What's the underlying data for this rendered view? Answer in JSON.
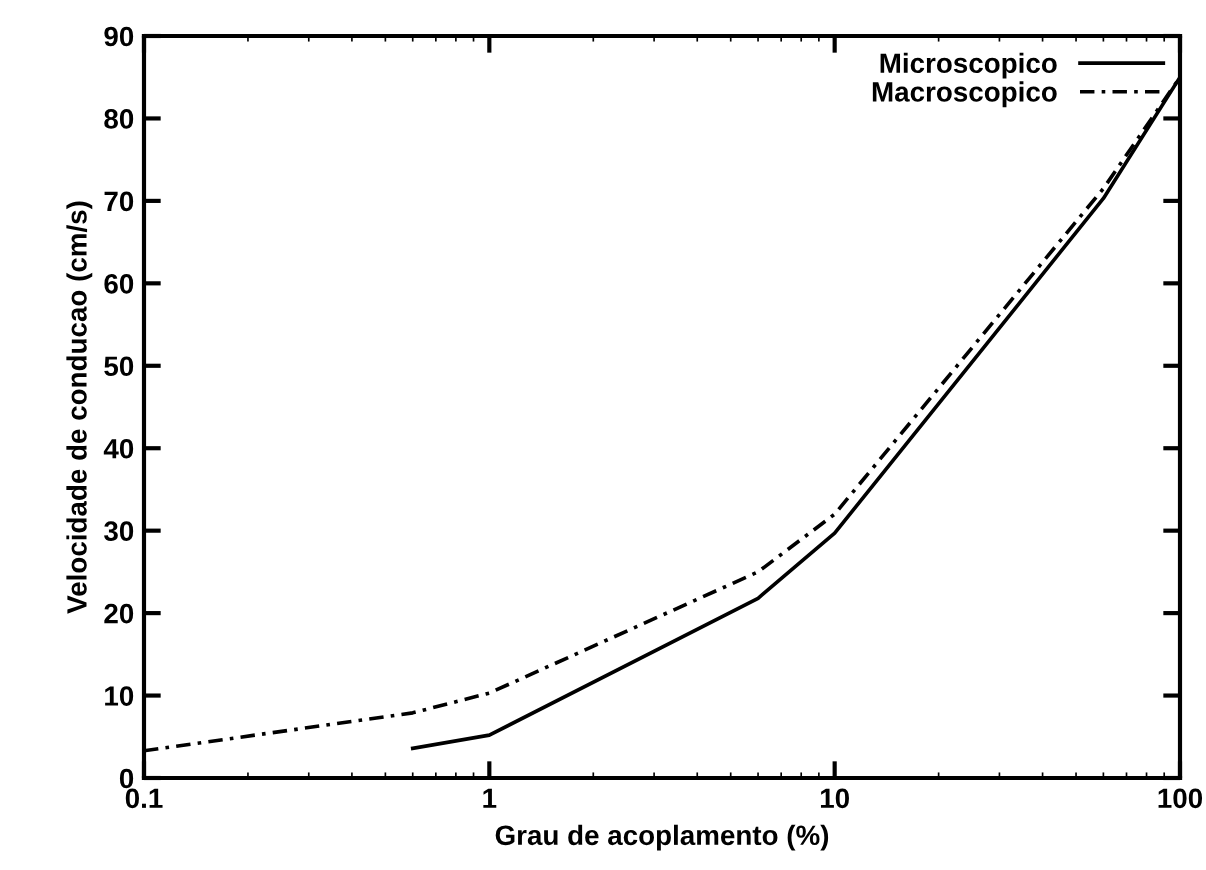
{
  "chart_data": {
    "type": "line",
    "xlabel": "Grau de acoplamento (%)",
    "ylabel": "Velocidade de conducao (cm/s)",
    "log": "x",
    "xlim": [
      0.1,
      100
    ],
    "xticks": [
      0.1,
      1,
      10,
      100
    ],
    "ylim": [
      0,
      90
    ],
    "yticks": [
      0,
      10,
      20,
      30,
      40,
      50,
      60,
      70,
      80,
      90
    ],
    "legend": "top right",
    "grid": false,
    "series": [
      {
        "name": "Microscopico",
        "color": "#000000",
        "line_style": "solid",
        "x": [
          0.6,
          1,
          6,
          10,
          60,
          100
        ],
        "values": [
          3.6,
          5.2,
          21.8,
          29.7,
          70.3,
          85
        ]
      },
      {
        "name": "Macroscopico",
        "color": "#000000",
        "line_style": "dashed",
        "x": [
          0.1,
          0.6,
          1,
          6,
          10,
          60,
          100
        ],
        "values": [
          3.3,
          7.9,
          10.3,
          25,
          32,
          71.5,
          85
        ]
      }
    ]
  }
}
